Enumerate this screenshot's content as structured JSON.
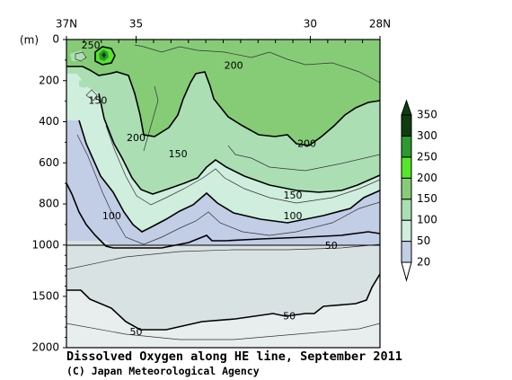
{
  "chart_data": {
    "type": "heatmap",
    "title": "Dissolved Oxygen along HE line, September 2011",
    "credit": "(C) Japan Meteorological Agency",
    "x_axis": {
      "position": "top",
      "ticks": [
        {
          "value": 37,
          "label": "37N"
        },
        {
          "value": 35,
          "label": "35"
        },
        {
          "value": 30,
          "label": "30"
        },
        {
          "value": 28,
          "label": "28N"
        }
      ],
      "minor_ticks": [
        37,
        36.5,
        36,
        35.5,
        35,
        34.5,
        34,
        33.5,
        33,
        32.5,
        32,
        31.5,
        31,
        30.5,
        30,
        29.5,
        29,
        28.5,
        28
      ],
      "range": [
        37,
        28
      ]
    },
    "y_axis": {
      "unit": "(m)",
      "ticks": [
        {
          "value": 0,
          "label": "0"
        },
        {
          "value": 200,
          "label": "200"
        },
        {
          "value": 400,
          "label": "400"
        },
        {
          "value": 600,
          "label": "600"
        },
        {
          "value": 800,
          "label": "800"
        },
        {
          "value": 1000,
          "label": "1000"
        },
        {
          "value": 1500,
          "label": "1500"
        },
        {
          "value": 2000,
          "label": "2000"
        }
      ],
      "range": [
        0,
        2000
      ],
      "scale_break": 1000,
      "upper_fraction": 0.667
    },
    "color_scale": {
      "levels": [
        20,
        50,
        100,
        150,
        200,
        250,
        300,
        350
      ],
      "labels": [
        "20",
        "50",
        "100",
        "150",
        "200",
        "250",
        "300",
        "350"
      ],
      "colors": [
        "#d9e2e2",
        "#c2cde6",
        "#cfeedd",
        "#abdfb3",
        "#86cc77",
        "#55e62a",
        "#2e9930",
        "#0f3d0f"
      ],
      "background": "#e8eded"
    },
    "contour_labels": [
      {
        "text": "250",
        "lat": 36.3,
        "depth": 30
      },
      {
        "text": "200",
        "lat": 32.2,
        "depth": 130
      },
      {
        "text": "150",
        "lat": 36.1,
        "depth": 300
      },
      {
        "text": "200",
        "lat": 35.0,
        "depth": 480
      },
      {
        "text": "200",
        "lat": 30.1,
        "depth": 510
      },
      {
        "text": "150",
        "lat": 33.8,
        "depth": 560
      },
      {
        "text": "150",
        "lat": 30.5,
        "depth": 760
      },
      {
        "text": "100",
        "lat": 35.7,
        "depth": 860
      },
      {
        "text": "100",
        "lat": 30.5,
        "depth": 860
      },
      {
        "text": "50",
        "lat": 29.4,
        "depth": 1010
      },
      {
        "text": "50",
        "lat": 30.6,
        "depth": 1700
      },
      {
        "text": "50",
        "lat": 35.0,
        "depth": 1850
      }
    ]
  }
}
